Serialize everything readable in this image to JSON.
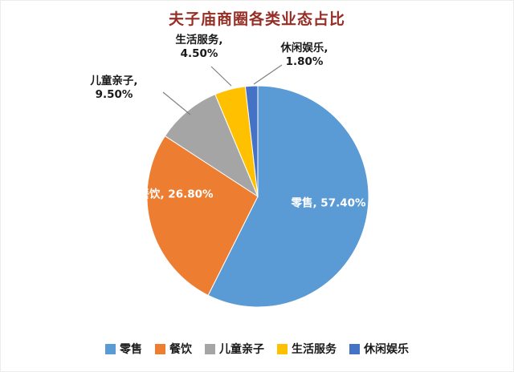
{
  "chart_data": {
    "type": "pie",
    "title": "夫子庙商圈各类业态占比",
    "slices": [
      {
        "name": "零售",
        "value": 57.4,
        "label": "零售, 57.40%",
        "color": "#5B9BD5",
        "label_position": "inside"
      },
      {
        "name": "餐饮",
        "value": 26.8,
        "label": "餐饮, 26.80%",
        "color": "#ED7D31",
        "label_position": "inside"
      },
      {
        "name": "儿童亲子",
        "value": 9.5,
        "label": "儿童亲子, 9.50%",
        "color": "#A5A5A5",
        "label_position": "outside"
      },
      {
        "name": "生活服务",
        "value": 4.5,
        "label": "生活服务, 4.50%",
        "color": "#FFC000",
        "label_position": "outside"
      },
      {
        "name": "休闲娱乐",
        "value": 1.8,
        "label": "休闲娱乐, 1.80%",
        "color": "#4472C4",
        "label_position": "outside"
      }
    ],
    "legend": [
      "零售",
      "餐饮",
      "儿童亲子",
      "生活服务",
      "休闲娱乐"
    ],
    "legend_position": "bottom",
    "start_angle_deg": -90,
    "direction": "clockwise",
    "title_color": "#952E26",
    "label_inside_color": "#FFFFFF",
    "label_outside_color": "#1A1A1A",
    "leader_line_color": "#7F7F7F"
  }
}
